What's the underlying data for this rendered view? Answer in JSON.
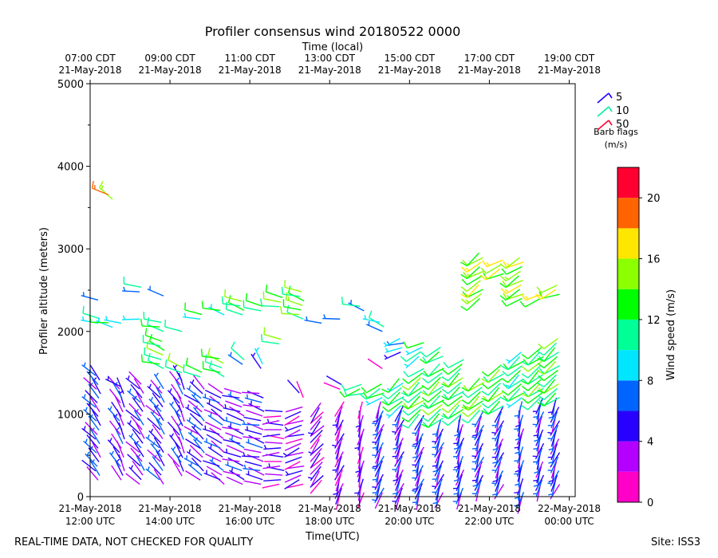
{
  "chart_data": {
    "type": "wind-barb",
    "title": "Profiler consensus wind 20180522 0000",
    "xlabel": "Time(UTC)",
    "xlabel_top": "Time (local)",
    "ylabel": "Profiler altitude (meters)",
    "ylim": [
      0,
      5000
    ],
    "xlim_hours_utc": [
      12.0,
      24.15
    ],
    "x_ticks_utc": [
      {
        "hour": 12,
        "line1": "21-May-2018",
        "line2": "12:00 UTC"
      },
      {
        "hour": 14,
        "line1": "21-May-2018",
        "line2": "14:00 UTC"
      },
      {
        "hour": 16,
        "line1": "21-May-2018",
        "line2": "16:00 UTC"
      },
      {
        "hour": 18,
        "line1": "21-May-2018",
        "line2": "18:00 UTC"
      },
      {
        "hour": 20,
        "line1": "21-May-2018",
        "line2": "20:00 UTC"
      },
      {
        "hour": 22,
        "line1": "21-May-2018",
        "line2": "22:00 UTC"
      },
      {
        "hour": 24,
        "line1": "22-May-2018",
        "line2": "00:00 UTC"
      }
    ],
    "x_ticks_local": [
      {
        "hour": 12,
        "line1": "07:00 CDT",
        "line2": "21-May-2018"
      },
      {
        "hour": 14,
        "line1": "09:00 CDT",
        "line2": "21-May-2018"
      },
      {
        "hour": 16,
        "line1": "11:00 CDT",
        "line2": "21-May-2018"
      },
      {
        "hour": 18,
        "line1": "13:00 CDT",
        "line2": "21-May-2018"
      },
      {
        "hour": 20,
        "line1": "15:00 CDT",
        "line2": "21-May-2018"
      },
      {
        "hour": 22,
        "line1": "17:00 CDT",
        "line2": "21-May-2018"
      },
      {
        "hour": 24,
        "line1": "19:00 CDT",
        "line2": "21-May-2018"
      }
    ],
    "y_ticks": [
      0,
      1000,
      2000,
      3000,
      4000,
      5000
    ],
    "barb_legend_title": "Barb flags",
    "barb_legend_units": "(m/s)",
    "barb_legend": [
      {
        "label": "5",
        "color": "#1a00ff"
      },
      {
        "label": "10",
        "color": "#00f0a0"
      },
      {
        "label": "50",
        "color": "#ff0030"
      }
    ],
    "colorbar": {
      "label": "Wind speed (m/s)",
      "min": 0,
      "max": 22,
      "step": 2,
      "ticks": [
        0,
        4,
        8,
        12,
        16,
        20
      ],
      "colors": [
        "#ff00c8",
        "#b400ff",
        "#2800ff",
        "#0064ff",
        "#00e6ff",
        "#00ff96",
        "#00ff00",
        "#8cff00",
        "#ffe600",
        "#ff6400",
        "#ff0030"
      ]
    },
    "levels_m": [
      155,
      210,
      265,
      320,
      375,
      430,
      485,
      540,
      595,
      650,
      705,
      760,
      815,
      870,
      925,
      980,
      1035,
      1090,
      1145,
      1200,
      1255,
      1310,
      1365,
      1420,
      1475
    ],
    "columns": [
      {
        "t": 12.2,
        "segments": [
          {
            "from": 200,
            "to": 1480,
            "speed": 5,
            "dir": 320
          },
          {
            "from": 2100,
            "to": 2180,
            "speed": 10,
            "dir": 280
          },
          {
            "from": 2380,
            "to": 2380,
            "speed": 9,
            "dir": 285
          }
        ]
      },
      {
        "t": 12.5,
        "segments": [
          {
            "from": 2050,
            "to": 2150,
            "speed": 11,
            "dir": 280
          },
          {
            "from": 3600,
            "to": 3680,
            "speed": 17,
            "dir": 300
          }
        ]
      },
      {
        "t": 12.8,
        "segments": [
          {
            "from": 200,
            "to": 1300,
            "speed": 4,
            "dir": 330
          },
          {
            "from": 1330,
            "to": 1330,
            "speed": 7,
            "dir": 300
          },
          {
            "from": 2100,
            "to": 2100,
            "speed": 11,
            "dir": 285
          }
        ]
      },
      {
        "t": 13.3,
        "segments": [
          {
            "from": 150,
            "to": 1400,
            "speed": 4,
            "dir": 320
          },
          {
            "from": 2150,
            "to": 2150,
            "speed": 11,
            "dir": 280
          },
          {
            "from": 2480,
            "to": 2560,
            "speed": 9,
            "dir": 285
          }
        ]
      },
      {
        "t": 13.8,
        "segments": [
          {
            "from": 150,
            "to": 1350,
            "speed": 5,
            "dir": 320
          },
          {
            "from": 1550,
            "to": 1900,
            "speed": 12,
            "dir": 290
          },
          {
            "from": 2000,
            "to": 2150,
            "speed": 12,
            "dir": 285
          },
          {
            "from": 2430,
            "to": 2480,
            "speed": 9,
            "dir": 285
          }
        ]
      },
      {
        "t": 14.3,
        "segments": [
          {
            "from": 250,
            "to": 1420,
            "speed": 4,
            "dir": 330
          },
          {
            "from": 1500,
            "to": 1600,
            "speed": 13,
            "dir": 290
          },
          {
            "from": 2000,
            "to": 2000,
            "speed": 12,
            "dir": 285
          }
        ]
      },
      {
        "t": 14.8,
        "segments": [
          {
            "from": 200,
            "to": 1300,
            "speed": 5,
            "dir": 310
          },
          {
            "from": 1450,
            "to": 1550,
            "speed": 12,
            "dir": 295
          },
          {
            "from": 2150,
            "to": 2250,
            "speed": 11,
            "dir": 285
          }
        ]
      },
      {
        "t": 15.3,
        "segments": [
          {
            "from": 150,
            "to": 1300,
            "speed": 4,
            "dir": 300
          },
          {
            "from": 1450,
            "to": 1700,
            "speed": 12,
            "dir": 290
          },
          {
            "from": 2200,
            "to": 2300,
            "speed": 11,
            "dir": 285
          }
        ]
      },
      {
        "t": 15.8,
        "segments": [
          {
            "from": 150,
            "to": 1300,
            "speed": 4,
            "dir": 290
          },
          {
            "from": 1600,
            "to": 1700,
            "speed": 9,
            "dir": 300
          },
          {
            "from": 2200,
            "to": 2380,
            "speed": 12,
            "dir": 285
          }
        ]
      },
      {
        "t": 16.3,
        "segments": [
          {
            "from": 150,
            "to": 1280,
            "speed": 4,
            "dir": 285
          },
          {
            "from": 1550,
            "to": 1650,
            "speed": 7,
            "dir": 330
          },
          {
            "from": 2250,
            "to": 2350,
            "speed": 12,
            "dir": 285
          }
        ]
      },
      {
        "t": 16.8,
        "segments": [
          {
            "from": 150,
            "to": 1050,
            "speed": 3,
            "dir": 270
          },
          {
            "from": 1850,
            "to": 1950,
            "speed": 13,
            "dir": 290
          },
          {
            "from": 2300,
            "to": 2460,
            "speed": 13,
            "dir": 285
          }
        ]
      },
      {
        "t": 17.3,
        "segments": [
          {
            "from": 150,
            "to": 1100,
            "speed": 3,
            "dir": 250
          },
          {
            "from": 1200,
            "to": 1300,
            "speed": 3,
            "dir": 330
          },
          {
            "from": 2150,
            "to": 2480,
            "speed": 13,
            "dir": 285
          }
        ]
      },
      {
        "t": 17.8,
        "segments": [
          {
            "from": 200,
            "to": 1150,
            "speed": 3,
            "dir": 220
          },
          {
            "from": 2100,
            "to": 2150,
            "speed": 9,
            "dir": 280
          }
        ]
      },
      {
        "t": 18.3,
        "segments": [
          {
            "from": 50,
            "to": 1200,
            "speed": 3,
            "dir": 200
          },
          {
            "from": 1300,
            "to": 1400,
            "speed": 3,
            "dir": 300
          },
          {
            "from": 2150,
            "to": 2150,
            "speed": 9,
            "dir": 280
          }
        ]
      },
      {
        "t": 18.8,
        "segments": [
          {
            "from": 50,
            "to": 1200,
            "speed": 3,
            "dir": 190
          },
          {
            "from": 1250,
            "to": 1400,
            "speed": 12,
            "dir": 250
          },
          {
            "from": 2250,
            "to": 2350,
            "speed": 9,
            "dir": 285
          }
        ]
      },
      {
        "t": 19.3,
        "segments": [
          {
            "from": 50,
            "to": 1150,
            "speed": 5,
            "dir": 200
          },
          {
            "from": 1200,
            "to": 1400,
            "speed": 11,
            "dir": 240
          },
          {
            "from": 1550,
            "to": 1600,
            "speed": 2,
            "dir": 300
          },
          {
            "from": 2000,
            "to": 2150,
            "speed": 9,
            "dir": 290
          }
        ]
      },
      {
        "t": 19.8,
        "segments": [
          {
            "from": 50,
            "to": 1100,
            "speed": 4,
            "dir": 200
          },
          {
            "from": 1100,
            "to": 1450,
            "speed": 11,
            "dir": 230
          },
          {
            "from": 1750,
            "to": 1950,
            "speed": 7,
            "dir": 250
          }
        ]
      },
      {
        "t": 20.3,
        "segments": [
          {
            "from": 50,
            "to": 1000,
            "speed": 5,
            "dir": 200
          },
          {
            "from": 1000,
            "to": 1600,
            "speed": 12,
            "dir": 230
          },
          {
            "from": 1700,
            "to": 1900,
            "speed": 10,
            "dir": 240
          }
        ]
      },
      {
        "t": 20.8,
        "segments": [
          {
            "from": 50,
            "to": 950,
            "speed": 5,
            "dir": 200
          },
          {
            "from": 950,
            "to": 1650,
            "speed": 12,
            "dir": 230
          },
          {
            "from": 1700,
            "to": 1850,
            "speed": 12,
            "dir": 240
          }
        ]
      },
      {
        "t": 21.3,
        "segments": [
          {
            "from": 50,
            "to": 1000,
            "speed": 5,
            "dir": 195
          },
          {
            "from": 1000,
            "to": 1700,
            "speed": 12,
            "dir": 230
          }
        ]
      },
      {
        "t": 21.8,
        "segments": [
          {
            "from": 150,
            "to": 1050,
            "speed": 5,
            "dir": 200
          },
          {
            "from": 1050,
            "to": 1450,
            "speed": 13,
            "dir": 230
          },
          {
            "from": 2400,
            "to": 2960,
            "speed": 14,
            "dir": 235
          }
        ]
      },
      {
        "t": 22.3,
        "segments": [
          {
            "from": 150,
            "to": 1100,
            "speed": 5,
            "dir": 200
          },
          {
            "from": 1100,
            "to": 1600,
            "speed": 12,
            "dir": 230
          },
          {
            "from": 2700,
            "to": 2900,
            "speed": 15,
            "dir": 240
          }
        ]
      },
      {
        "t": 22.8,
        "segments": [
          {
            "from": 0,
            "to": 1200,
            "speed": 5,
            "dir": 190
          },
          {
            "from": 1200,
            "to": 1800,
            "speed": 11,
            "dir": 230
          },
          {
            "from": 2400,
            "to": 2900,
            "speed": 14,
            "dir": 240
          }
        ]
      },
      {
        "t": 23.3,
        "segments": [
          {
            "from": 150,
            "to": 1200,
            "speed": 5,
            "dir": 195
          },
          {
            "from": 1200,
            "to": 1850,
            "speed": 12,
            "dir": 230
          },
          {
            "from": 2400,
            "to": 2500,
            "speed": 15,
            "dir": 245
          }
        ]
      },
      {
        "t": 23.7,
        "segments": [
          {
            "from": 150,
            "to": 1200,
            "speed": 5,
            "dir": 200
          },
          {
            "from": 1200,
            "to": 1950,
            "speed": 12,
            "dir": 230
          },
          {
            "from": 2450,
            "to": 2600,
            "speed": 15,
            "dir": 245
          }
        ]
      }
    ]
  },
  "footer": {
    "left": "REAL-TIME DATA, NOT CHECKED FOR QUALITY",
    "right": "Site: ISS3"
  }
}
